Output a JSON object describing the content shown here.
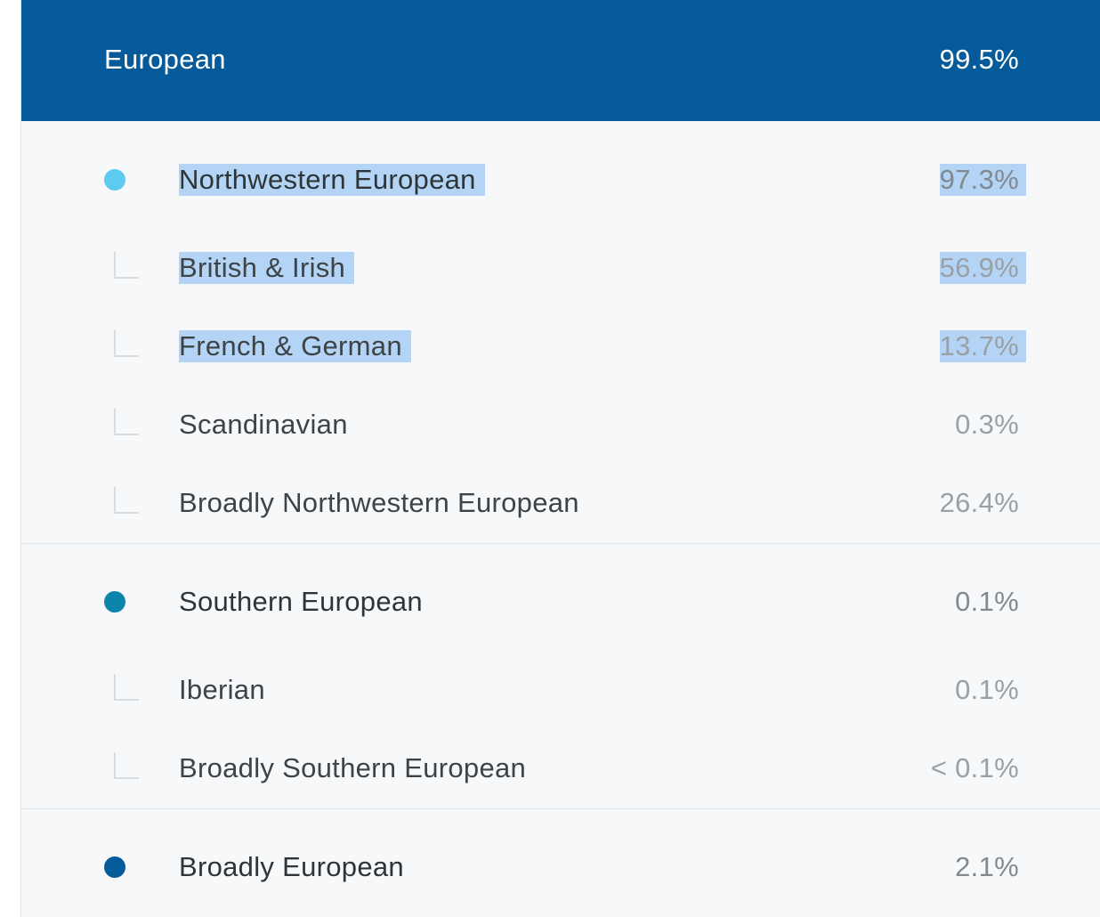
{
  "region": {
    "name": "European",
    "percent": "99.5%",
    "color": "#045a9b"
  },
  "groups": [
    {
      "name": "Northwestern European",
      "percent": "97.3%",
      "dot_color": "#5ccbef",
      "selected": true,
      "items": [
        {
          "name": "British & Irish",
          "percent": "56.9%",
          "selected": true
        },
        {
          "name": "French & German",
          "percent": "13.7%",
          "selected": true
        },
        {
          "name": "Scandinavian",
          "percent": "0.3%",
          "selected": false
        },
        {
          "name": "Broadly Northwestern European",
          "percent": "26.4%",
          "selected": false
        }
      ]
    },
    {
      "name": "Southern European",
      "percent": "0.1%",
      "dot_color": "#0b86aa",
      "selected": false,
      "items": [
        {
          "name": "Iberian",
          "percent": "0.1%",
          "selected": false
        },
        {
          "name": "Broadly Southern European",
          "percent": "< 0.1%",
          "selected": false
        }
      ]
    },
    {
      "name": "Broadly European",
      "percent": "2.1%",
      "dot_color": "#045a9b",
      "selected": false,
      "items": []
    }
  ],
  "icons": {
    "group_marker": "dot-icon",
    "sub_marker": "tree-elbow-icon"
  }
}
